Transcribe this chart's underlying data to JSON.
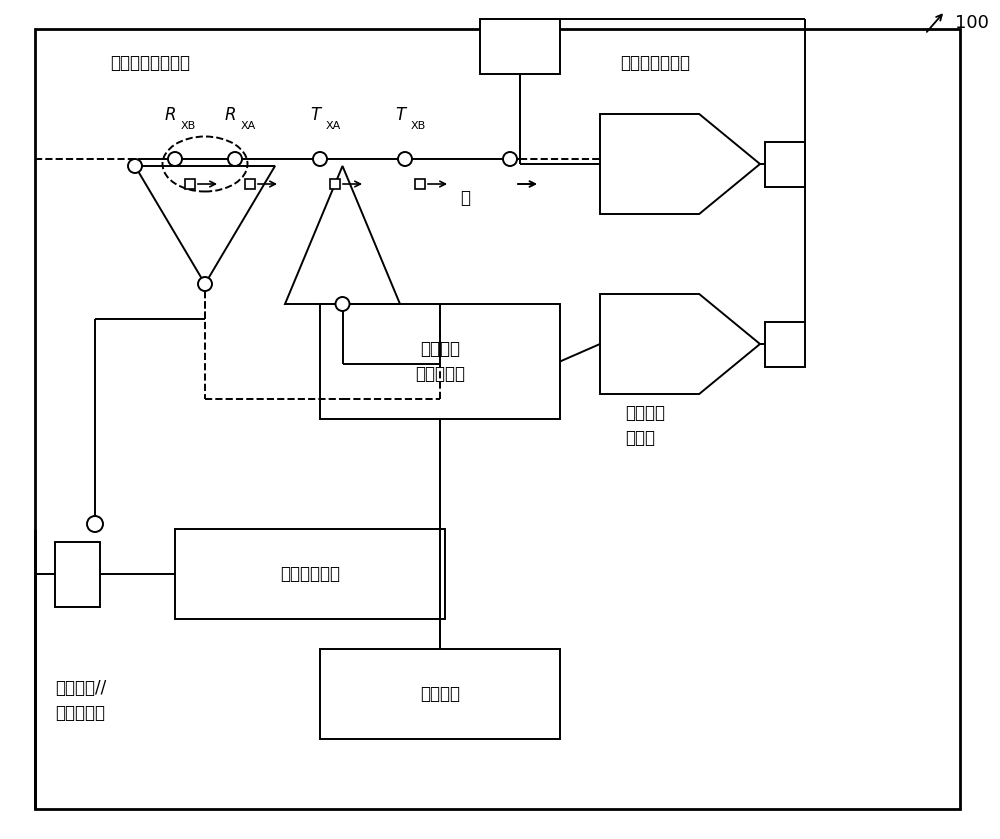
{
  "bg_color": "#ffffff",
  "fig_w": 10.0,
  "fig_h": 8.39,
  "texts": {
    "ref_100": "100",
    "soc": "片上系统//\n封装上系统",
    "interface": "多通道收发器接口",
    "dac": "数据采集功能块",
    "dsp": "数字信号\n处理控制器",
    "wireless": "无线通信\n收发器",
    "power": "电源管理系统",
    "sensor": "传感器库",
    "ground": "地",
    "rxb": "R",
    "rxa": "R",
    "txa": "T",
    "txb": "T",
    "sub_rxb": "XB",
    "sub_rxa": "XA",
    "sub_txa": "XA",
    "sub_txb": "XB"
  }
}
